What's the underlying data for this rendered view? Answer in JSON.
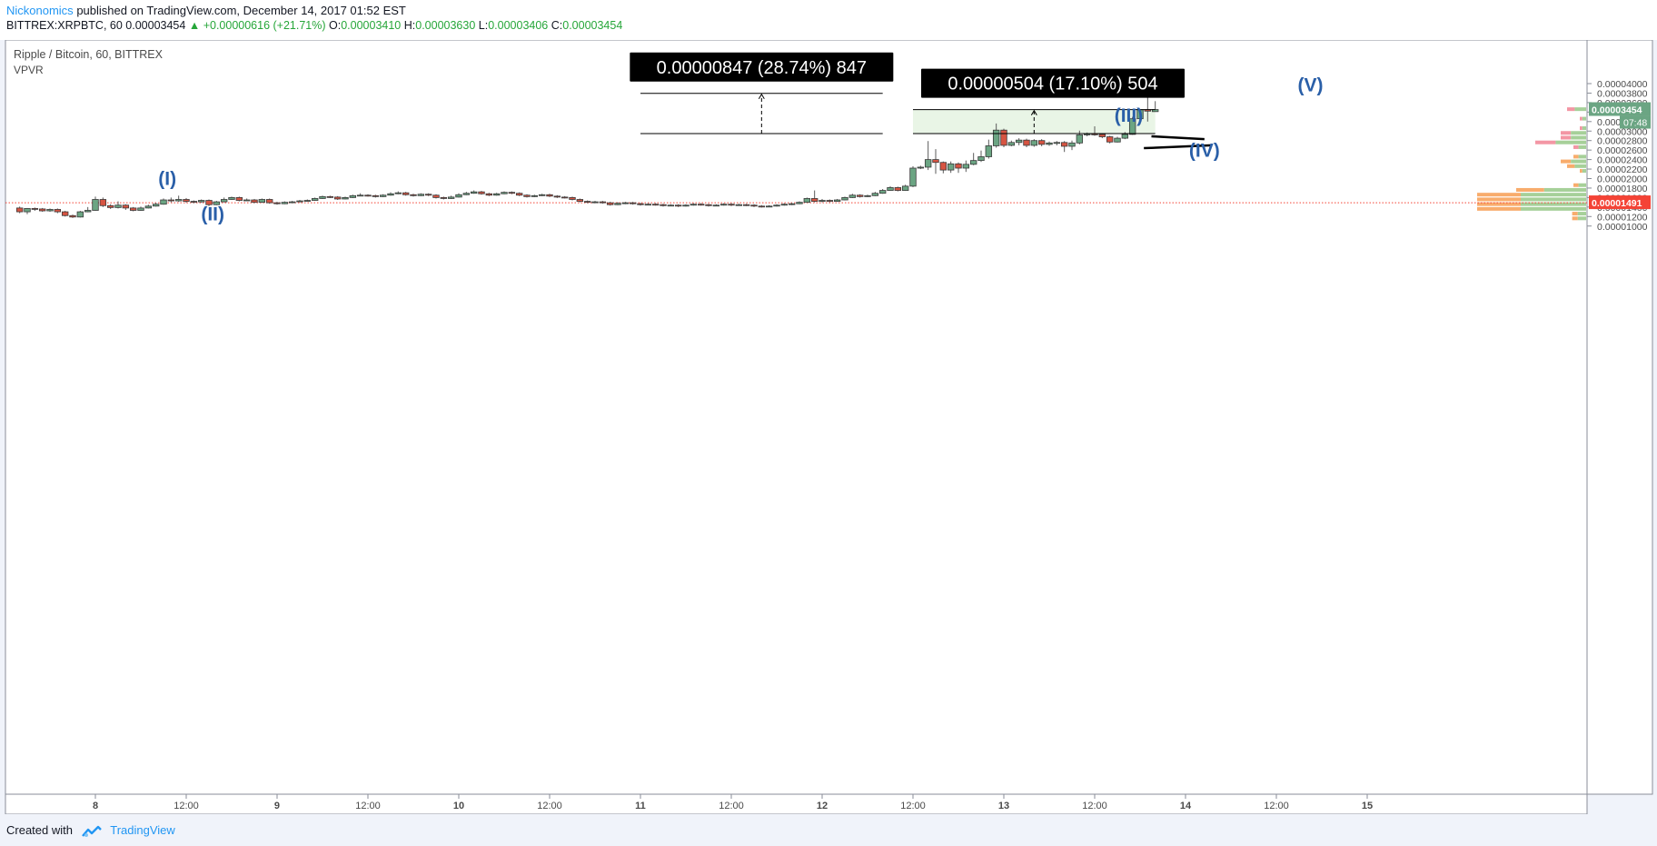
{
  "header": {
    "author": "Nickonomics",
    "published": "published on TradingView.com, December 14, 2017 01:52 EST",
    "symbol": "BITTREX:XRPBTC, 60",
    "last": "0.00003454",
    "change": "+0.00000616 (+21.71%)",
    "open_label": "O:",
    "open": "0.00003410",
    "high_label": "H:",
    "high": "0.00003630",
    "low_label": "L:",
    "low": "0.00003406",
    "close_label": "C:",
    "close": "0.00003454"
  },
  "footer": {
    "created_with": "Created with",
    "brand": "TradingView"
  },
  "chart_data": {
    "type": "candlestick",
    "title": "Ripple / Bitcoin, 60, BITTREX",
    "indicator": "VPVR",
    "ylim": [
      9.4e-06,
      4.26e-05
    ],
    "y_ticks": [
      "0.00001000",
      "0.00001200",
      "0.00001400",
      "0.00001600",
      "0.00001800",
      "0.00002000",
      "0.00002200",
      "0.00002400",
      "0.00002600",
      "0.00002800",
      "0.00003000",
      "0.00003200",
      "0.00003400",
      "0.00003600",
      "0.00003800",
      "0.00004000"
    ],
    "x_ticks": [
      {
        "label": "8",
        "bar": 0
      },
      {
        "label": "12:00",
        "bar": 12
      },
      {
        "label": "9",
        "bar": 24
      },
      {
        "label": "12:00",
        "bar": 36
      },
      {
        "label": "10",
        "bar": 48
      },
      {
        "label": "12:00",
        "bar": 60
      },
      {
        "label": "11",
        "bar": 72
      },
      {
        "label": "12:00",
        "bar": 84
      },
      {
        "label": "12",
        "bar": 96
      },
      {
        "label": "12:00",
        "bar": 108
      },
      {
        "label": "13",
        "bar": 120
      },
      {
        "label": "12:00",
        "bar": 132
      },
      {
        "label": "14",
        "bar": 144
      },
      {
        "label": "12:00",
        "bar": 156
      },
      {
        "label": "15",
        "bar": 168
      }
    ],
    "first_bar_offset": -10,
    "last_price": "0.00003454",
    "countdown": "07:48",
    "hline_price": "0.00001491",
    "hline": 1.491e-05,
    "candles": [
      [
        1.38,
        1.3,
        1.41,
        1.27
      ],
      [
        1.3,
        1.37,
        1.38,
        1.25
      ],
      [
        1.37,
        1.36,
        1.39,
        1.32
      ],
      [
        1.36,
        1.32,
        1.38,
        1.3
      ],
      [
        1.32,
        1.35,
        1.37,
        1.3
      ],
      [
        1.35,
        1.3,
        1.37,
        1.27
      ],
      [
        1.3,
        1.22,
        1.32,
        1.2
      ],
      [
        1.22,
        1.19,
        1.24,
        1.17
      ],
      [
        1.19,
        1.3,
        1.32,
        1.18
      ],
      [
        1.3,
        1.33,
        1.4,
        1.29
      ],
      [
        1.33,
        1.56,
        1.62,
        1.32
      ],
      [
        1.56,
        1.43,
        1.6,
        1.4
      ],
      [
        1.43,
        1.39,
        1.46,
        1.36
      ],
      [
        1.39,
        1.44,
        1.52,
        1.37
      ],
      [
        1.44,
        1.38,
        1.46,
        1.34
      ],
      [
        1.38,
        1.33,
        1.4,
        1.31
      ],
      [
        1.33,
        1.38,
        1.41,
        1.32
      ],
      [
        1.38,
        1.42,
        1.45,
        1.37
      ],
      [
        1.42,
        1.46,
        1.49,
        1.41
      ],
      [
        1.46,
        1.55,
        1.58,
        1.45
      ],
      [
        1.55,
        1.53,
        1.6,
        1.5
      ],
      [
        1.53,
        1.56,
        1.64,
        1.51
      ],
      [
        1.56,
        1.52,
        1.59,
        1.49
      ],
      [
        1.52,
        1.51,
        1.54,
        1.48
      ],
      [
        1.51,
        1.54,
        1.56,
        1.49
      ],
      [
        1.54,
        1.45,
        1.56,
        1.42
      ],
      [
        1.45,
        1.51,
        1.53,
        1.44
      ],
      [
        1.51,
        1.56,
        1.6,
        1.5
      ],
      [
        1.56,
        1.6,
        1.62,
        1.55
      ],
      [
        1.6,
        1.54,
        1.62,
        1.52
      ],
      [
        1.54,
        1.55,
        1.58,
        1.53
      ],
      [
        1.55,
        1.5,
        1.57,
        1.48
      ],
      [
        1.5,
        1.56,
        1.58,
        1.49
      ],
      [
        1.56,
        1.49,
        1.58,
        1.47
      ],
      [
        1.49,
        1.47,
        1.51,
        1.45
      ],
      [
        1.47,
        1.5,
        1.52,
        1.46
      ],
      [
        1.5,
        1.51,
        1.53,
        1.48
      ],
      [
        1.51,
        1.53,
        1.55,
        1.5
      ],
      [
        1.53,
        1.54,
        1.56,
        1.52
      ],
      [
        1.54,
        1.58,
        1.6,
        1.53
      ],
      [
        1.58,
        1.62,
        1.64,
        1.57
      ],
      [
        1.62,
        1.61,
        1.64,
        1.59
      ],
      [
        1.61,
        1.57,
        1.63,
        1.55
      ],
      [
        1.57,
        1.6,
        1.62,
        1.56
      ],
      [
        1.6,
        1.64,
        1.66,
        1.59
      ],
      [
        1.64,
        1.65,
        1.69,
        1.63
      ],
      [
        1.65,
        1.64,
        1.67,
        1.62
      ],
      [
        1.64,
        1.62,
        1.66,
        1.6
      ],
      [
        1.62,
        1.65,
        1.67,
        1.61
      ],
      [
        1.65,
        1.68,
        1.71,
        1.64
      ],
      [
        1.68,
        1.7,
        1.73,
        1.67
      ],
      [
        1.7,
        1.66,
        1.72,
        1.64
      ],
      [
        1.66,
        1.64,
        1.68,
        1.62
      ],
      [
        1.64,
        1.67,
        1.69,
        1.63
      ],
      [
        1.67,
        1.65,
        1.69,
        1.63
      ],
      [
        1.65,
        1.6,
        1.67,
        1.58
      ],
      [
        1.6,
        1.58,
        1.62,
        1.56
      ],
      [
        1.58,
        1.61,
        1.64,
        1.57
      ],
      [
        1.61,
        1.66,
        1.69,
        1.6
      ],
      [
        1.66,
        1.69,
        1.72,
        1.65
      ],
      [
        1.69,
        1.72,
        1.75,
        1.68
      ],
      [
        1.72,
        1.68,
        1.74,
        1.66
      ],
      [
        1.68,
        1.65,
        1.7,
        1.63
      ],
      [
        1.65,
        1.68,
        1.7,
        1.64
      ],
      [
        1.68,
        1.71,
        1.73,
        1.67
      ],
      [
        1.71,
        1.69,
        1.73,
        1.67
      ],
      [
        1.69,
        1.65,
        1.71,
        1.63
      ],
      [
        1.65,
        1.62,
        1.67,
        1.6
      ],
      [
        1.62,
        1.64,
        1.66,
        1.61
      ],
      [
        1.64,
        1.66,
        1.68,
        1.63
      ],
      [
        1.66,
        1.63,
        1.68,
        1.61
      ],
      [
        1.63,
        1.61,
        1.65,
        1.59
      ],
      [
        1.61,
        1.6,
        1.63,
        1.58
      ],
      [
        1.6,
        1.56,
        1.62,
        1.54
      ],
      [
        1.56,
        1.52,
        1.58,
        1.5
      ],
      [
        1.52,
        1.5,
        1.54,
        1.48
      ],
      [
        1.5,
        1.51,
        1.53,
        1.48
      ],
      [
        1.51,
        1.49,
        1.53,
        1.47
      ],
      [
        1.49,
        1.45,
        1.51,
        1.43
      ],
      [
        1.45,
        1.48,
        1.5,
        1.44
      ],
      [
        1.48,
        1.49,
        1.51,
        1.46
      ],
      [
        1.49,
        1.47,
        1.51,
        1.45
      ],
      [
        1.47,
        1.45,
        1.49,
        1.43
      ],
      [
        1.45,
        1.46,
        1.48,
        1.44
      ],
      [
        1.46,
        1.45,
        1.48,
        1.43
      ],
      [
        1.45,
        1.43,
        1.47,
        1.41
      ],
      [
        1.43,
        1.44,
        1.46,
        1.42
      ],
      [
        1.44,
        1.42,
        1.46,
        1.4
      ],
      [
        1.42,
        1.44,
        1.46,
        1.41
      ],
      [
        1.44,
        1.46,
        1.48,
        1.43
      ],
      [
        1.46,
        1.45,
        1.48,
        1.43
      ],
      [
        1.45,
        1.43,
        1.47,
        1.41
      ],
      [
        1.43,
        1.44,
        1.46,
        1.42
      ],
      [
        1.44,
        1.46,
        1.48,
        1.43
      ],
      [
        1.46,
        1.44,
        1.48,
        1.42
      ],
      [
        1.44,
        1.45,
        1.47,
        1.43
      ],
      [
        1.45,
        1.44,
        1.47,
        1.42
      ],
      [
        1.44,
        1.42,
        1.46,
        1.4
      ],
      [
        1.42,
        1.41,
        1.44,
        1.39
      ],
      [
        1.41,
        1.42,
        1.44,
        1.4
      ],
      [
        1.42,
        1.44,
        1.46,
        1.41
      ],
      [
        1.44,
        1.46,
        1.48,
        1.43
      ],
      [
        1.46,
        1.47,
        1.49,
        1.44
      ],
      [
        1.47,
        1.5,
        1.52,
        1.46
      ],
      [
        1.5,
        1.58,
        1.6,
        1.49
      ],
      [
        1.58,
        1.52,
        1.75,
        1.5
      ],
      [
        1.52,
        1.54,
        1.57,
        1.5
      ],
      [
        1.54,
        1.52,
        1.56,
        1.5
      ],
      [
        1.52,
        1.55,
        1.57,
        1.51
      ],
      [
        1.55,
        1.6,
        1.62,
        1.54
      ],
      [
        1.6,
        1.65,
        1.68,
        1.59
      ],
      [
        1.65,
        1.62,
        1.67,
        1.6
      ],
      [
        1.62,
        1.64,
        1.66,
        1.61
      ],
      [
        1.64,
        1.69,
        1.72,
        1.63
      ],
      [
        1.69,
        1.75,
        1.78,
        1.68
      ],
      [
        1.75,
        1.81,
        1.84,
        1.74
      ],
      [
        1.81,
        1.75,
        1.83,
        1.73
      ],
      [
        1.75,
        1.84,
        1.87,
        1.74
      ],
      [
        1.84,
        2.22,
        2.26,
        1.82
      ],
      [
        2.22,
        2.24,
        2.27,
        2.2
      ],
      [
        2.24,
        2.4,
        2.79,
        2.18
      ],
      [
        2.4,
        2.34,
        2.62,
        2.1
      ],
      [
        2.34,
        2.18,
        2.36,
        2.11
      ],
      [
        2.18,
        2.31,
        2.36,
        2.12
      ],
      [
        2.31,
        2.22,
        2.34,
        2.12
      ],
      [
        2.22,
        2.3,
        2.38,
        2.14
      ],
      [
        2.3,
        2.38,
        2.54,
        2.28
      ],
      [
        2.38,
        2.46,
        2.59,
        2.35
      ],
      [
        2.46,
        2.69,
        2.82,
        2.42
      ],
      [
        2.69,
        3.02,
        3.16,
        2.65
      ],
      [
        3.02,
        2.7,
        3.05,
        2.66
      ],
      [
        2.7,
        2.76,
        2.8,
        2.68
      ],
      [
        2.76,
        2.81,
        2.85,
        2.7
      ],
      [
        2.81,
        2.7,
        2.84,
        2.66
      ],
      [
        2.7,
        2.8,
        2.83,
        2.67
      ],
      [
        2.8,
        2.72,
        2.83,
        2.68
      ],
      [
        2.72,
        2.75,
        2.78,
        2.69
      ],
      [
        2.75,
        2.76,
        2.79,
        2.7
      ],
      [
        2.76,
        2.68,
        2.79,
        2.56
      ],
      [
        2.68,
        2.75,
        2.8,
        2.6
      ],
      [
        2.75,
        2.92,
        3.01,
        2.72
      ],
      [
        2.92,
        2.94,
        2.97,
        2.89
      ],
      [
        2.94,
        2.93,
        3.1,
        2.9
      ],
      [
        2.93,
        2.88,
        2.95,
        2.85
      ],
      [
        2.88,
        2.77,
        2.9,
        2.74
      ],
      [
        2.77,
        2.85,
        2.88,
        2.76
      ],
      [
        2.85,
        2.93,
        2.98,
        2.83
      ],
      [
        2.93,
        3.26,
        3.3,
        2.92
      ],
      [
        3.26,
        3.45,
        3.46,
        3.14
      ],
      [
        3.45,
        3.42,
        3.81,
        3.2
      ],
      [
        3.41,
        3.454,
        3.63,
        3.406
      ]
    ]
  },
  "annotations": {
    "wave_labels": [
      {
        "text": "(I)",
        "bar": 9.5,
        "price": 1.868e-05
      },
      {
        "text": "(II)",
        "bar": 15.5,
        "price": 1.12e-05
      },
      {
        "text": "(III)",
        "bar": 136.5,
        "price": 3.195e-05
      },
      {
        "text": "(IV)",
        "bar": 146.5,
        "price": 2.455e-05
      },
      {
        "text": "(V)",
        "bar": 160.5,
        "price": 3.835e-05
      }
    ],
    "measure_1": {
      "text": "0.00000847 (28.74%) 847",
      "bar_start": 72,
      "bar_end": 104,
      "price_low": 2.947e-05,
      "price_high": 3.794e-05
    },
    "measure_2": {
      "text": "0.00000504 (17.10%) 504",
      "bar_start": 108,
      "bar_end": 140,
      "price_low": 2.947e-05,
      "price_high": 3.451e-05
    },
    "triangle": [
      {
        "bar": 139.5,
        "price": 2.89e-05
      },
      {
        "bar": 146.5,
        "price": 2.83e-05
      },
      {
        "bar": 138.5,
        "price": 2.64e-05
      },
      {
        "bar": 147.5,
        "price": 2.7e-05
      }
    ]
  }
}
